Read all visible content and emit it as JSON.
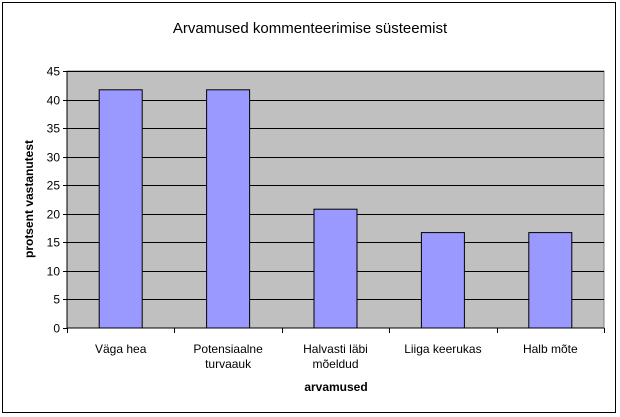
{
  "chart_data": {
    "type": "bar",
    "title": "Arvamused kommenteerimise süsteemist",
    "xlabel": "arvamused",
    "ylabel": "protsent vastanutest",
    "categories": [
      [
        "Väga hea"
      ],
      [
        "Potensiaalne",
        "turvaauk"
      ],
      [
        "Halvasti läbi",
        "mõeldud"
      ],
      [
        "Liiga keerukas"
      ],
      [
        "Halb mõte"
      ]
    ],
    "values": [
      41.7,
      41.7,
      20.8,
      16.7,
      16.7
    ],
    "ylim": [
      0,
      45
    ],
    "yticks": [
      0,
      5,
      10,
      15,
      20,
      25,
      30,
      35,
      40,
      45
    ],
    "grid": true,
    "legend": "none",
    "colors": {
      "plot_background": "#C0C0C0",
      "bar_fill": "#9999FF",
      "bar_stroke": "#000000",
      "gridline": "#000000"
    }
  }
}
